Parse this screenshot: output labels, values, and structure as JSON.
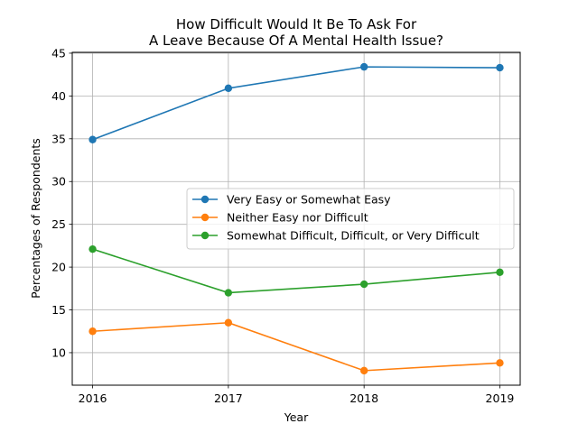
{
  "chart_data": {
    "type": "line",
    "title": [
      "How Difficult Would It Be To Ask For",
      "A Leave Because Of A Mental Health Issue?"
    ],
    "xlabel": "Year",
    "ylabel": "Percentages of Respondents",
    "x": [
      "2016",
      "2017",
      "2018",
      "2019"
    ],
    "xlim": [
      -0.15,
      3.15
    ],
    "ylim": [
      6.2,
      45.1
    ],
    "yticks": [
      10,
      15,
      20,
      25,
      30,
      35,
      40,
      45
    ],
    "grid": true,
    "legend_position": "center-right",
    "series": [
      {
        "name": "Very Easy or Somewhat Easy",
        "color": "#1f77b4",
        "values": [
          34.9,
          40.9,
          43.4,
          43.3
        ]
      },
      {
        "name": "Neither Easy nor Difficult",
        "color": "#ff7f0e",
        "values": [
          12.5,
          13.5,
          7.9,
          8.8
        ]
      },
      {
        "name": "Somewhat Difficult, Difficult, or Very Difficult",
        "color": "#2ca02c",
        "values": [
          22.1,
          17.0,
          18.0,
          19.4
        ]
      }
    ]
  }
}
